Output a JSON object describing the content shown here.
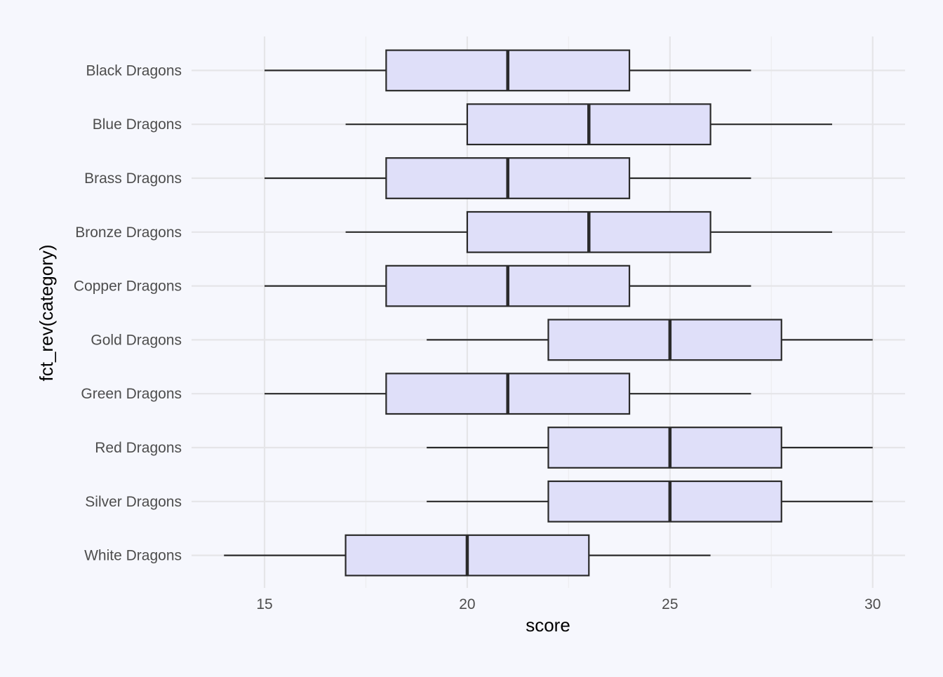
{
  "chart_data": {
    "type": "boxplot",
    "orientation": "horizontal",
    "title": "",
    "xlabel": "score",
    "ylabel": "fct_rev(category)",
    "xlim": [
      13.2,
      30.8
    ],
    "x_ticks": [
      15,
      20,
      25,
      30
    ],
    "grid": true,
    "legend": "none",
    "colors": {
      "background": "#f6f7fd",
      "box_fill": "#dfdff9",
      "box_stroke": "#2a2a2a",
      "grid_major": "#e5e5e8",
      "grid_minor": "#eeeef1"
    },
    "categories": [
      "Black Dragons",
      "Blue Dragons",
      "Brass Dragons",
      "Bronze Dragons",
      "Copper Dragons",
      "Gold Dragons",
      "Green Dragons",
      "Red Dragons",
      "Silver Dragons",
      "White Dragons"
    ],
    "boxes": [
      {
        "min": 15,
        "q1": 18,
        "median": 21,
        "q3": 24,
        "max": 27
      },
      {
        "min": 17,
        "q1": 20,
        "median": 23,
        "q3": 26,
        "max": 29
      },
      {
        "min": 15,
        "q1": 18,
        "median": 21,
        "q3": 24,
        "max": 27
      },
      {
        "min": 17,
        "q1": 20,
        "median": 23,
        "q3": 26,
        "max": 29
      },
      {
        "min": 15,
        "q1": 18,
        "median": 21,
        "q3": 24,
        "max": 27
      },
      {
        "min": 19,
        "q1": 22,
        "median": 25,
        "q3": 27.75,
        "max": 30
      },
      {
        "min": 15,
        "q1": 18,
        "median": 21,
        "q3": 24,
        "max": 27
      },
      {
        "min": 19,
        "q1": 22,
        "median": 25,
        "q3": 27.75,
        "max": 30
      },
      {
        "min": 19,
        "q1": 22,
        "median": 25,
        "q3": 27.75,
        "max": 30
      },
      {
        "min": 14,
        "q1": 17,
        "median": 20,
        "q3": 23,
        "max": 26
      }
    ]
  }
}
